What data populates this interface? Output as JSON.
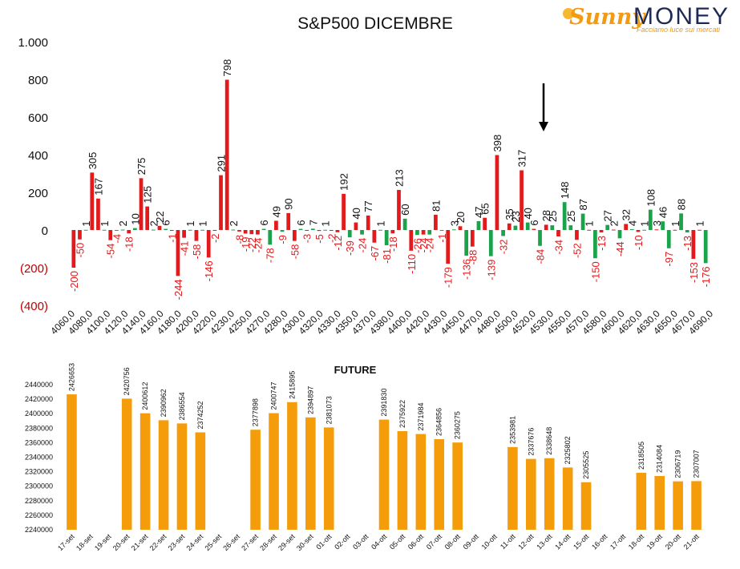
{
  "logo": {
    "brand_a": "Sunny",
    "brand_b": "MONEY",
    "tagline": "Facciamo luce sui mercati"
  },
  "colors": {
    "negative": "#e31a1c",
    "positive": "#1aa34a",
    "future": "#f59c0b",
    "negative_label": "#c00000"
  },
  "chart_data": [
    {
      "type": "bar",
      "title": "S&P500 DICEMBRE",
      "ylim": [
        -400,
        1000
      ],
      "yticks": [
        -400,
        -200,
        0,
        200,
        400,
        600,
        800,
        1000
      ],
      "ytick_labels": [
        "(400)",
        "(200)",
        "0",
        "200",
        "400",
        "600",
        "800",
        "1.000"
      ],
      "categories": [
        "4060,0",
        "4080,0",
        "4100,0",
        "4120,0",
        "4140,0",
        "4160,0",
        "4180,0",
        "4200,0",
        "4220,0",
        "4230,0",
        "4250,0",
        "4270,0",
        "4280,0",
        "4300,0",
        "4320,0",
        "4330,0",
        "4350,0",
        "4370,0",
        "4380,0",
        "4400,0",
        "4420,0",
        "4430,0",
        "4450,0",
        "4470,0",
        "4480,0",
        "4500,0",
        "4520,0",
        "4530,0",
        "4550,0",
        "4570,0",
        "4580,0",
        "4600,0",
        "4620,0",
        "4630,0",
        "4650,0",
        "4670,0",
        "4690,0"
      ],
      "bars": [
        {
          "v": -200,
          "c": "r"
        },
        {
          "v": -50,
          "c": "r"
        },
        {
          "v": 1,
          "c": "g"
        },
        {
          "v": 305,
          "c": "r"
        },
        {
          "v": 167,
          "c": "r"
        },
        {
          "v": 1,
          "c": "g"
        },
        {
          "v": -54,
          "c": "r"
        },
        {
          "v": -4,
          "c": "g"
        },
        {
          "v": 2,
          "c": "g"
        },
        {
          "v": -18,
          "c": "r"
        },
        {
          "v": 10,
          "c": "g"
        },
        {
          "v": 275,
          "c": "r"
        },
        {
          "v": 125,
          "c": "r"
        },
        {
          "v": 2,
          "c": "g"
        },
        {
          "v": 22,
          "c": "r"
        },
        {
          "v": 6,
          "c": "g"
        },
        {
          "v": -1,
          "c": "r"
        },
        {
          "v": -244,
          "c": "r"
        },
        {
          "v": -41,
          "c": "r"
        },
        {
          "v": 1,
          "c": "g"
        },
        {
          "v": -58,
          "c": "r"
        },
        {
          "v": 1,
          "c": "g"
        },
        {
          "v": -146,
          "c": "r"
        },
        {
          "v": -2,
          "c": "r"
        },
        {
          "v": 291,
          "c": "r"
        },
        {
          "v": 798,
          "c": "r"
        },
        {
          "v": 2,
          "c": "g"
        },
        {
          "v": -8,
          "c": "r"
        },
        {
          "v": -19,
          "c": "r"
        },
        {
          "v": -22,
          "c": "r"
        },
        {
          "v": -24,
          "c": "r"
        },
        {
          "v": 6,
          "c": "g"
        },
        {
          "v": -78,
          "c": "g"
        },
        {
          "v": 49,
          "c": "r"
        },
        {
          "v": -9,
          "c": "g"
        },
        {
          "v": 90,
          "c": "r"
        },
        {
          "v": -58,
          "c": "r"
        },
        {
          "v": 6,
          "c": "g"
        },
        {
          "v": -3,
          "c": "r"
        },
        {
          "v": 7,
          "c": "g"
        },
        {
          "v": -5,
          "c": "r"
        },
        {
          "v": 1,
          "c": "g"
        },
        {
          "v": -2,
          "c": "r"
        },
        {
          "v": -12,
          "c": "r"
        },
        {
          "v": 192,
          "c": "r"
        },
        {
          "v": -39,
          "c": "g"
        },
        {
          "v": 40,
          "c": "r"
        },
        {
          "v": -24,
          "c": "g"
        },
        {
          "v": 77,
          "c": "r"
        },
        {
          "v": -67,
          "c": "r"
        },
        {
          "v": 1,
          "c": "g"
        },
        {
          "v": -81,
          "c": "g"
        },
        {
          "v": -18,
          "c": "r"
        },
        {
          "v": 213,
          "c": "r"
        },
        {
          "v": 60,
          "c": "g"
        },
        {
          "v": -110,
          "c": "r"
        },
        {
          "v": -26,
          "c": "g"
        },
        {
          "v": -24,
          "c": "r"
        },
        {
          "v": -24,
          "c": "g"
        },
        {
          "v": 81,
          "c": "r"
        },
        {
          "v": -1,
          "c": "g"
        },
        {
          "v": -179,
          "c": "r"
        },
        {
          "v": 3,
          "c": "g"
        },
        {
          "v": 20,
          "c": "r"
        },
        {
          "v": -136,
          "c": "g"
        },
        {
          "v": -88,
          "c": "r"
        },
        {
          "v": 47,
          "c": "g"
        },
        {
          "v": 65,
          "c": "r"
        },
        {
          "v": -139,
          "c": "g"
        },
        {
          "v": 398,
          "c": "r"
        },
        {
          "v": -32,
          "c": "g"
        },
        {
          "v": 35,
          "c": "r"
        },
        {
          "v": 23,
          "c": "g"
        },
        {
          "v": 317,
          "c": "r"
        },
        {
          "v": 40,
          "c": "g"
        },
        {
          "v": 6,
          "c": "r"
        },
        {
          "v": -84,
          "c": "g"
        },
        {
          "v": 28,
          "c": "r"
        },
        {
          "v": 25,
          "c": "g"
        },
        {
          "v": -34,
          "c": "r"
        },
        {
          "v": 148,
          "c": "g"
        },
        {
          "v": 25,
          "c": "g"
        },
        {
          "v": -52,
          "c": "r"
        },
        {
          "v": 87,
          "c": "g"
        },
        {
          "v": 1,
          "c": "r"
        },
        {
          "v": -150,
          "c": "g"
        },
        {
          "v": -13,
          "c": "r"
        },
        {
          "v": 27,
          "c": "g"
        },
        {
          "v": 2,
          "c": "r"
        },
        {
          "v": -44,
          "c": "g"
        },
        {
          "v": 32,
          "c": "r"
        },
        {
          "v": 4,
          "c": "g"
        },
        {
          "v": -10,
          "c": "r"
        },
        {
          "v": 1,
          "c": "g"
        },
        {
          "v": 108,
          "c": "g"
        },
        {
          "v": 3,
          "c": "r"
        },
        {
          "v": 46,
          "c": "g"
        },
        {
          "v": -97,
          "c": "g"
        },
        {
          "v": 1,
          "c": "r"
        },
        {
          "v": 88,
          "c": "g"
        },
        {
          "v": -13,
          "c": "g"
        },
        {
          "v": -153,
          "c": "r"
        },
        {
          "v": 1,
          "c": "r"
        },
        {
          "v": -176,
          "c": "g"
        }
      ],
      "annotation": "arrow pointing at bar 317"
    },
    {
      "type": "bar",
      "title": "FUTURE",
      "ylim": [
        2240000,
        2440000
      ],
      "yticks": [
        2240000,
        2260000,
        2280000,
        2300000,
        2320000,
        2340000,
        2360000,
        2380000,
        2400000,
        2420000,
        2440000
      ],
      "categories": [
        "17-set",
        "18-set",
        "19-set",
        "20-set",
        "21-set",
        "22-set",
        "23-set",
        "24-set",
        "25-set",
        "26-set",
        "27-set",
        "28-set",
        "29-set",
        "30-set",
        "01-ott",
        "02-ott",
        "03-ott",
        "04-ott",
        "05-ott",
        "06-ott",
        "07-ott",
        "08-ott",
        "09-ott",
        "10-ott",
        "11-ott",
        "12-ott",
        "13-ott",
        "14-ott",
        "15-ott",
        "16-ott",
        "17-ott",
        "18-ott",
        "19-ott",
        "20-ott",
        "21-ott"
      ],
      "values": [
        2426653,
        null,
        null,
        2420756,
        2400612,
        2390962,
        2386554,
        2374252,
        null,
        null,
        2377898,
        2400747,
        2415895,
        2394897,
        2381073,
        null,
        null,
        2391830,
        2375922,
        2371984,
        2364856,
        2360275,
        null,
        null,
        2353981,
        2337676,
        2338648,
        2325802,
        2305525,
        null,
        null,
        2318505,
        2314084,
        2306719,
        2307007
      ]
    }
  ]
}
